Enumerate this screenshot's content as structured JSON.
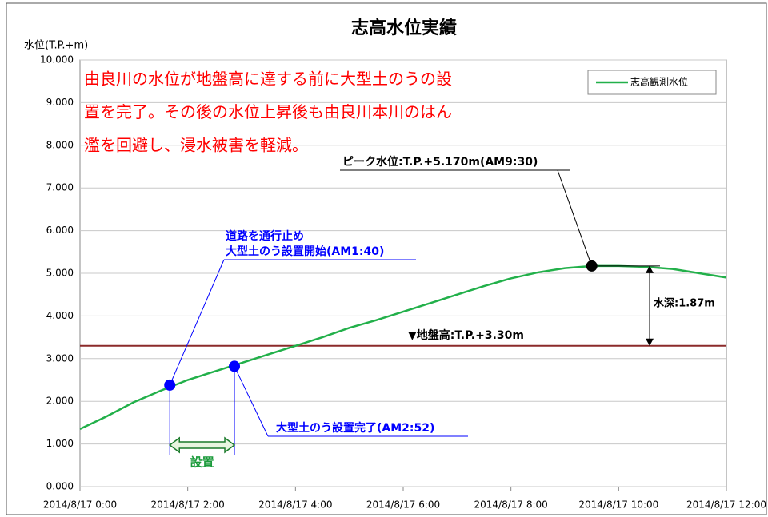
{
  "chart_data": {
    "type": "line",
    "title": "志高水位実績",
    "y_label": "水位(T.P.+m)",
    "headline": [
      "由良川の水位が地盤高に達する前に大型土のうの設",
      "置を完了。その後の水位上昇後も由良川本川のはん",
      "濫を回避し、浸水被害を軽減。"
    ],
    "x": [
      "2014-08-17T00:00",
      "2014-08-17T00:30",
      "2014-08-17T01:00",
      "2014-08-17T01:30",
      "2014-08-17T02:00",
      "2014-08-17T02:30",
      "2014-08-17T03:00",
      "2014-08-17T03:30",
      "2014-08-17T04:00",
      "2014-08-17T04:30",
      "2014-08-17T05:00",
      "2014-08-17T05:30",
      "2014-08-17T06:00",
      "2014-08-17T06:30",
      "2014-08-17T07:00",
      "2014-08-17T07:30",
      "2014-08-17T08:00",
      "2014-08-17T08:30",
      "2014-08-17T09:00",
      "2014-08-17T09:30",
      "2014-08-17T10:00",
      "2014-08-17T10:30",
      "2014-08-17T11:00",
      "2014-08-17T11:30",
      "2014-08-17T12:00"
    ],
    "series": [
      {
        "name": "志高観測水位",
        "color": "#22b04a",
        "values": [
          1.35,
          1.65,
          1.98,
          2.25,
          2.5,
          2.7,
          2.9,
          3.1,
          3.3,
          3.5,
          3.72,
          3.9,
          4.1,
          4.3,
          4.5,
          4.7,
          4.88,
          5.02,
          5.12,
          5.17,
          5.17,
          5.15,
          5.1,
          5.0,
          4.9
        ]
      }
    ],
    "xlim": [
      "2014-08-17T00:00",
      "2014-08-17T12:00"
    ],
    "xticks": [
      {
        "value": "2014-08-17T00:00",
        "label": "2014/8/17 0:00"
      },
      {
        "value": "2014-08-17T02:00",
        "label": "2014/8/17 2:00"
      },
      {
        "value": "2014-08-17T04:00",
        "label": "2014/8/17 4:00"
      },
      {
        "value": "2014-08-17T06:00",
        "label": "2014/8/17 6:00"
      },
      {
        "value": "2014-08-17T08:00",
        "label": "2014/8/17 8:00"
      },
      {
        "value": "2014-08-17T10:00",
        "label": "2014/8/17 10:00"
      },
      {
        "value": "2014-08-17T12:00",
        "label": "2014/8/17 12:00"
      }
    ],
    "ylim": [
      0,
      10
    ],
    "yticks": [
      {
        "value": 0,
        "label": "0.000"
      },
      {
        "value": 1,
        "label": "1.000"
      },
      {
        "value": 2,
        "label": "2.000"
      },
      {
        "value": 3,
        "label": "3.000"
      },
      {
        "value": 4,
        "label": "4.000"
      },
      {
        "value": 5,
        "label": "5.000"
      },
      {
        "value": 6,
        "label": "6.000"
      },
      {
        "value": 7,
        "label": "7.000"
      },
      {
        "value": 8,
        "label": "8.000"
      },
      {
        "value": 9,
        "label": "9.000"
      },
      {
        "value": 10,
        "label": "10.000"
      }
    ],
    "grid": true,
    "legend": "upper right",
    "reference_line": {
      "value": 3.3,
      "label": "▼地盤高:T.P.+3.30m",
      "color": "#8b2a2a"
    },
    "markers": [
      {
        "x": "2014-08-17T01:40",
        "value": 2.38,
        "color": "#0000ff",
        "label": [
          "道路を通行止め",
          "大型土のう設置開始(AM1:40)"
        ]
      },
      {
        "x": "2014-08-17T02:52",
        "value": 2.82,
        "color": "#0000ff",
        "label": [
          "大型土のう設置完了(AM2:52)"
        ]
      },
      {
        "x": "2014-08-17T09:30",
        "value": 5.17,
        "color": "#000000",
        "label": [
          "ピーク水位:T.P.+5.170m(AM9:30)"
        ]
      }
    ],
    "depth_label": "水深:1.87m",
    "span_label": "設置"
  }
}
